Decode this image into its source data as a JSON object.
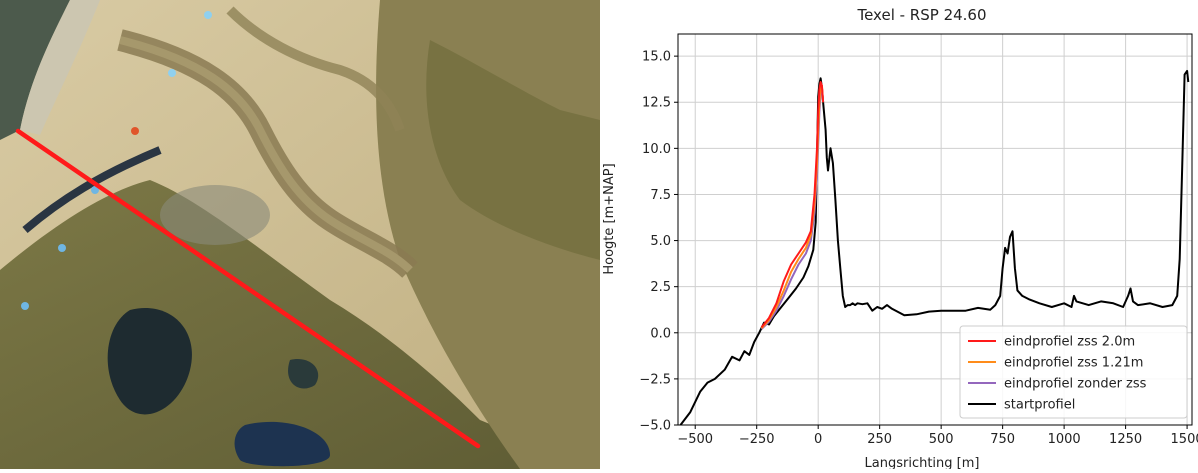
{
  "map": {
    "colors": {
      "sea": "#3f4a40",
      "sand": "#d2c29a",
      "channel": "#8a7a52",
      "vegetation": "#6f6a3c",
      "dune": "#9c9060",
      "water": "#1d2a3a",
      "profile_line": "#ff1a1a"
    },
    "markers": [
      {
        "color": "#8fd0ef"
      },
      {
        "color": "#8fd0ef"
      },
      {
        "color": "#e0552a"
      },
      {
        "color": "#6fb6e3"
      },
      {
        "color": "#6fb6e3"
      },
      {
        "color": "#6fb6e3"
      }
    ]
  },
  "chart_data": {
    "type": "line",
    "title": "Texel - RSP 24.60",
    "xlabel": "Langsrichting [m]",
    "ylabel": "Hoogte [m+NAP]",
    "xlim": [
      -570,
      1520
    ],
    "ylim": [
      -5.0,
      16.2
    ],
    "xticks": [
      -500,
      -250,
      0,
      250,
      500,
      750,
      1000,
      1250,
      1500
    ],
    "yticks": [
      -5.0,
      -2.5,
      0.0,
      2.5,
      5.0,
      7.5,
      10.0,
      12.5,
      15.0
    ],
    "ytick_labels": [
      "−5.0",
      "−2.5",
      "0.0",
      "2.5",
      "5.0",
      "7.5",
      "10.0",
      "12.5",
      "15.0"
    ],
    "xtick_labels": [
      "−500",
      "−250",
      "0",
      "250",
      "500",
      "750",
      "1000",
      "1250",
      "1500"
    ],
    "grid": true,
    "legend_position": "lower-right",
    "series": [
      {
        "name": "startprofiel",
        "color": "#000000",
        "x": [
          -560,
          -520,
          -480,
          -450,
          -420,
          -380,
          -350,
          -320,
          -300,
          -280,
          -260,
          -240,
          -220,
          -200,
          -180,
          -150,
          -120,
          -90,
          -60,
          -40,
          -20,
          -10,
          0,
          5,
          10,
          15,
          20,
          30,
          35,
          40,
          50,
          60,
          70,
          80,
          90,
          100,
          110,
          120,
          130,
          140,
          150,
          160,
          180,
          200,
          220,
          240,
          260,
          280,
          300,
          350,
          400,
          450,
          500,
          550,
          600,
          650,
          700,
          720,
          740,
          750,
          760,
          770,
          780,
          790,
          800,
          810,
          830,
          860,
          900,
          950,
          1000,
          1030,
          1040,
          1050,
          1100,
          1150,
          1200,
          1240,
          1260,
          1270,
          1280,
          1300,
          1350,
          1400,
          1440,
          1460,
          1470,
          1480,
          1490,
          1500,
          1505
        ],
        "y": [
          -5.0,
          -4.3,
          -3.2,
          -2.7,
          -2.5,
          -2.0,
          -1.3,
          -1.5,
          -1.0,
          -1.2,
          -0.5,
          0.0,
          0.55,
          0.45,
          0.9,
          1.4,
          1.9,
          2.4,
          3.0,
          3.6,
          4.5,
          6.0,
          12.8,
          13.5,
          13.8,
          13.3,
          12.5,
          11.0,
          9.5,
          8.8,
          10.0,
          9.2,
          7.2,
          5.0,
          3.5,
          2.0,
          1.4,
          1.5,
          1.5,
          1.6,
          1.5,
          1.6,
          1.55,
          1.6,
          1.2,
          1.4,
          1.3,
          1.5,
          1.3,
          0.95,
          1.0,
          1.15,
          1.2,
          1.2,
          1.2,
          1.35,
          1.25,
          1.5,
          2.0,
          3.5,
          4.6,
          4.3,
          5.2,
          5.5,
          3.5,
          2.3,
          2.0,
          1.8,
          1.6,
          1.4,
          1.6,
          1.4,
          2.0,
          1.7,
          1.5,
          1.7,
          1.6,
          1.4,
          2.0,
          2.4,
          1.7,
          1.5,
          1.6,
          1.4,
          1.5,
          2.0,
          4.0,
          9.0,
          14.0,
          14.2,
          13.6
        ]
      },
      {
        "name": "eindprofiel zss 2.0m",
        "color": "#ff1a1a",
        "x": [
          -230,
          -200,
          -170,
          -140,
          -110,
          -80,
          -50,
          -30,
          -15,
          -5,
          0,
          5,
          10,
          15,
          20
        ],
        "y": [
          0.3,
          0.8,
          1.6,
          2.8,
          3.7,
          4.3,
          4.9,
          5.5,
          7.5,
          10.0,
          12.0,
          13.2,
          13.6,
          13.4,
          12.5
        ]
      },
      {
        "name": "eindprofiel zss 1.21m",
        "color": "#ff8c1a",
        "x": [
          -230,
          -200,
          -170,
          -140,
          -110,
          -80,
          -50,
          -30,
          -15,
          -5,
          0,
          5,
          10,
          15,
          20
        ],
        "y": [
          0.25,
          0.7,
          1.4,
          2.3,
          3.3,
          4.0,
          4.6,
          5.3,
          7.0,
          9.2,
          11.0,
          12.5,
          13.3,
          13.4,
          12.5
        ]
      },
      {
        "name": "eindprofiel zonder zss",
        "color": "#9467bd",
        "x": [
          -230,
          -200,
          -170,
          -140,
          -110,
          -80,
          -50,
          -30,
          -15,
          -5,
          0,
          5,
          10,
          15,
          20
        ],
        "y": [
          0.2,
          0.6,
          1.2,
          2.0,
          2.9,
          3.7,
          4.3,
          5.0,
          6.5,
          8.5,
          10.2,
          12.0,
          13.0,
          13.3,
          12.5
        ]
      }
    ],
    "legend_order": [
      "eindprofiel zss 2.0m",
      "eindprofiel zss 1.21m",
      "eindprofiel zonder zss",
      "startprofiel"
    ]
  }
}
